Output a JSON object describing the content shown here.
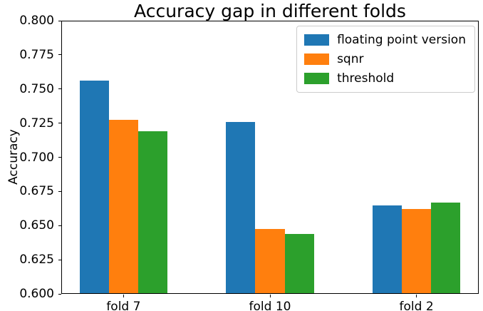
{
  "chart_data": {
    "type": "bar",
    "title": "Accuracy gap in different folds",
    "xlabel": "",
    "ylabel": "Accuracy",
    "categories": [
      "fold 7",
      "fold 10",
      "fold 2"
    ],
    "series": [
      {
        "name": "floating point version",
        "color": "#1f77b4",
        "values": [
          0.756,
          0.726,
          0.665
        ]
      },
      {
        "name": "sqnr",
        "color": "#ff7f0e",
        "values": [
          0.7275,
          0.6475,
          0.662
        ]
      },
      {
        "name": "threshold",
        "color": "#2ca02c",
        "values": [
          0.719,
          0.644,
          0.667
        ]
      }
    ],
    "x_positions": [
      0,
      1,
      2
    ],
    "xlim": [
      -0.425,
      2.425
    ],
    "ylim": [
      0.6,
      0.8
    ],
    "ytick_step": 0.025,
    "ytick_decimals": 3,
    "bar_width": 0.2,
    "grid": false,
    "legend_position": "upper right",
    "axis_color": "#000000",
    "legend_border_color": "#cccccc",
    "background_color": "#ffffff"
  }
}
